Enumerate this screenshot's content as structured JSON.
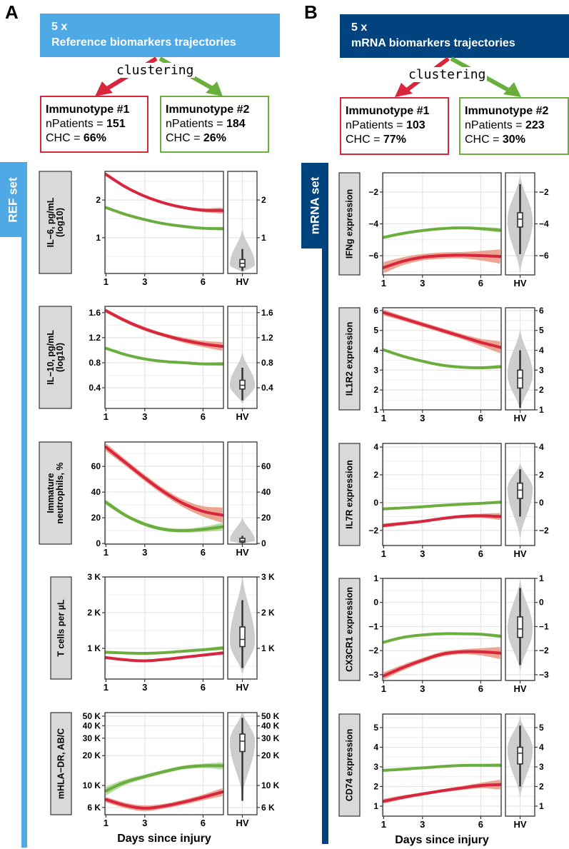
{
  "colors": {
    "immunotype1": "#D7263D",
    "immunotype1_ribbon": "#E9957E",
    "immunotype2": "#6AAE3E",
    "immunotype2_ribbon": "#ADD394",
    "ref_blue": "#4FA9E5",
    "mrna_blue": "#00437F",
    "hv_violin": "#C8C8C8"
  },
  "figure": {
    "panels": [
      {
        "letter": "A",
        "title_line1": "5 x",
        "title_line2": "Reference biomarkers trajectories",
        "method": "clustering",
        "set_label": "REF set",
        "groups": [
          {
            "name": "Immunotype #1",
            "npatients_label": "nPatients = ",
            "npatients": "151",
            "chc_label": "CHC = ",
            "chc": "66%"
          },
          {
            "name": "Immunotype #2",
            "npatients_label": "nPatients = ",
            "npatients": "184",
            "chc_label": "CHC = ",
            "chc": "26%"
          }
        ]
      },
      {
        "letter": "B",
        "title_line1": "5 x",
        "title_line2": "mRNA biomarkers trajectories",
        "method": "clustering",
        "set_label": "mRNA set",
        "groups": [
          {
            "name": "Immunotype #1",
            "npatients_label": "nPatients = ",
            "npatients": "103",
            "chc_label": "CHC = ",
            "chc": "77%"
          },
          {
            "name": "Immunotype #2",
            "npatients_label": "nPatients = ",
            "npatients": "223",
            "chc_label": "CHC = ",
            "chc": "30%"
          }
        ]
      }
    ]
  },
  "chart_data": [
    {
      "type": "line",
      "set": "REF set",
      "xlabel": "Days since injury",
      "x": [
        1,
        2,
        3,
        4,
        5,
        6,
        7
      ],
      "xlim": [
        0.95,
        7.05
      ],
      "xticks": [
        1,
        3,
        6
      ],
      "hv_label": "HV",
      "series_names": [
        "Immunotype #1",
        "Immunotype #2"
      ],
      "panels": [
        {
          "ylabel": [
            "IL−6, pg/mL",
            "(log10)"
          ],
          "yscale": "linear",
          "ylim": [
            0.05,
            2.76
          ],
          "yticks": [
            1,
            2
          ],
          "ytick_labels": [
            "1",
            "2"
          ],
          "series": [
            {
              "name": "Immunotype #1",
              "values": [
                2.68,
                2.35,
                2.1,
                1.92,
                1.8,
                1.73,
                1.72
              ],
              "ci": [
                0.04,
                0.03,
                0.03,
                0.03,
                0.04,
                0.05,
                0.08
              ]
            },
            {
              "name": "Immunotype #2",
              "values": [
                1.8,
                1.62,
                1.48,
                1.37,
                1.3,
                1.25,
                1.24
              ],
              "ci": [
                0.03,
                0.02,
                0.02,
                0.02,
                0.02,
                0.03,
                0.05
              ]
            }
          ],
          "hv": {
            "vmin": 0.08,
            "vmax": 1.2,
            "mode": 0.28,
            "whisker_low": 0.12,
            "q1": 0.22,
            "median": 0.32,
            "q3": 0.42,
            "whisker_high": 0.7
          }
        },
        {
          "ylabel": [
            "IL−10, pg/mL",
            "(log10)"
          ],
          "yscale": "linear",
          "ylim": [
            0.07,
            1.7
          ],
          "yticks": [
            0.4,
            0.8,
            1.2,
            1.6
          ],
          "ytick_labels": [
            "0.4",
            "0.8",
            "1.2",
            "1.6"
          ],
          "series": [
            {
              "name": "Immunotype #1",
              "values": [
                1.63,
                1.47,
                1.34,
                1.24,
                1.16,
                1.1,
                1.06
              ],
              "ci": [
                0.03,
                0.03,
                0.03,
                0.03,
                0.04,
                0.05,
                0.07
              ]
            },
            {
              "name": "Immunotype #2",
              "values": [
                1.03,
                0.93,
                0.86,
                0.82,
                0.8,
                0.78,
                0.78
              ],
              "ci": [
                0.02,
                0.02,
                0.02,
                0.02,
                0.02,
                0.02,
                0.03
              ]
            }
          ],
          "hv": {
            "vmin": 0.15,
            "vmax": 0.95,
            "mode": 0.44,
            "whisker_low": 0.2,
            "q1": 0.38,
            "median": 0.44,
            "q3": 0.52,
            "whisker_high": 0.72
          }
        },
        {
          "ylabel": [
            "Immature",
            "neutrophils, %"
          ],
          "yscale": "linear",
          "ylim": [
            -0.5,
            79
          ],
          "yticks": [
            0,
            20,
            40,
            60
          ],
          "ytick_labels": [
            "0",
            "20",
            "40",
            "60"
          ],
          "series": [
            {
              "name": "Immunotype #1",
              "values": [
                75,
                63,
                51,
                40,
                31,
                25,
                22
              ],
              "ci": [
                3,
                2.5,
                2.5,
                2.5,
                3,
                4,
                6
              ]
            },
            {
              "name": "Immunotype #2",
              "values": [
                32,
                22,
                15,
                11,
                10,
                11,
                13
              ],
              "ci": [
                2,
                1.5,
                1.5,
                1.5,
                1.5,
                2,
                3
              ]
            }
          ],
          "hv": {
            "vmin": 0,
            "vmax": 20,
            "mode": 2,
            "whisker_low": 0,
            "q1": 1,
            "median": 2,
            "q3": 4,
            "whisker_high": 6
          }
        },
        {
          "ylabel": [
            "T cells per µL"
          ],
          "yscale": "linear",
          "ylim": [
            140,
            3000
          ],
          "yticks": [
            1000,
            2000,
            3000
          ],
          "ytick_labels": [
            "1 K",
            "2 K",
            "3 K"
          ],
          "series": [
            {
              "name": "Immunotype #1",
              "values": [
                740,
                680,
                650,
                690,
                750,
                810,
                870
              ],
              "ci": [
                35,
                25,
                25,
                25,
                30,
                35,
                50
              ]
            },
            {
              "name": "Immunotype #2",
              "values": [
                890,
                870,
                860,
                880,
                920,
                960,
                1010
              ],
              "ci": [
                30,
                25,
                25,
                25,
                30,
                35,
                60
              ]
            }
          ],
          "hv": {
            "vmin": 300,
            "vmax": 3000,
            "mode": 1200,
            "whisker_low": 450,
            "q1": 1050,
            "median": 1250,
            "q3": 1600,
            "whisker_high": 2350
          }
        },
        {
          "ylabel": [
            "mHLA−DR, AB/C"
          ],
          "yscale": "log10",
          "ylim": [
            5070,
            54300
          ],
          "yticks": [
            6000,
            10000,
            20000,
            30000,
            40000,
            50000
          ],
          "ytick_labels": [
            "6 K",
            "10 K",
            "20 K",
            "30 K",
            "40 K",
            "50 K"
          ],
          "series": [
            {
              "name": "Immunotype #1",
              "values": [
                7200,
                6300,
                5900,
                6200,
                6800,
                7600,
                8600
              ],
              "ci": [
                450,
                400,
                400,
                350,
                400,
                500,
                800
              ]
            },
            {
              "name": "Immunotype #2",
              "values": [
                8800,
                10800,
                12300,
                13800,
                15200,
                15800,
                15800
              ],
              "ci": [
                900,
                700,
                600,
                600,
                700,
                800,
                1300
              ]
            }
          ],
          "hv": {
            "vmin": 8000,
            "vmax": 55000,
            "mode": 28000,
            "whisker_low": 7000,
            "q1": 22000,
            "median": 28000,
            "q3": 33000,
            "whisker_high": 48000
          }
        }
      ]
    },
    {
      "type": "line",
      "set": "mRNA set",
      "xlabel": "Days since injury",
      "x": [
        1,
        2,
        3,
        4,
        5,
        6,
        7
      ],
      "xlim": [
        0.95,
        7.05
      ],
      "xticks": [
        1,
        3,
        6
      ],
      "hv_label": "HV",
      "series_names": [
        "Immunotype #1",
        "Immunotype #2"
      ],
      "panels": [
        {
          "ylabel": [
            "IFNg expression"
          ],
          "yscale": "linear",
          "ylim": [
            -7.21,
            -0.79
          ],
          "yticks": [
            -6,
            -4,
            -2
          ],
          "ytick_labels": [
            "−6",
            "−4",
            "−2"
          ],
          "series": [
            {
              "name": "Immunotype #1",
              "values": [
                -6.75,
                -6.35,
                -6.1,
                -6.0,
                -5.97,
                -6.0,
                -6.05
              ],
              "ci": [
                0.35,
                0.25,
                0.2,
                0.2,
                0.2,
                0.3,
                0.45
              ]
            },
            {
              "name": "Immunotype #2",
              "values": [
                -4.85,
                -4.6,
                -4.42,
                -4.3,
                -4.25,
                -4.3,
                -4.4
              ],
              "ci": [
                0.1,
                0.08,
                0.08,
                0.08,
                0.08,
                0.1,
                0.15
              ]
            }
          ],
          "hv": {
            "vmin": -7,
            "vmax": -1,
            "mode": -3.8,
            "whisker_low": -5.9,
            "q1": -4.2,
            "median": -3.7,
            "q3": -3.3,
            "whisker_high": -1.5
          }
        },
        {
          "ylabel": [
            "IL1R2 expression"
          ],
          "yscale": "linear",
          "ylim": [
            1.0,
            6.14
          ],
          "yticks": [
            1,
            2,
            3,
            4,
            5,
            6
          ],
          "ytick_labels": [
            "1",
            "2",
            "3",
            "4",
            "5",
            "6"
          ],
          "series": [
            {
              "name": "Immunotype #1",
              "values": [
                5.9,
                5.6,
                5.3,
                5.0,
                4.7,
                4.4,
                4.15
              ],
              "ci": [
                0.15,
                0.12,
                0.12,
                0.12,
                0.13,
                0.18,
                0.3
              ]
            },
            {
              "name": "Immunotype #2",
              "values": [
                4.02,
                3.7,
                3.45,
                3.25,
                3.15,
                3.12,
                3.17
              ],
              "ci": [
                0.06,
                0.05,
                0.05,
                0.05,
                0.05,
                0.06,
                0.1
              ]
            }
          ],
          "hv": {
            "vmin": 1.0,
            "vmax": 5.0,
            "mode": 2.8,
            "whisker_low": 1.1,
            "q1": 2.1,
            "median": 2.6,
            "q3": 3.0,
            "whisker_high": 4.0
          }
        },
        {
          "ylabel": [
            "IL7R expression"
          ],
          "yscale": "linear",
          "ylim": [
            -3.09,
            4.26
          ],
          "yticks": [
            -2,
            0,
            2,
            4
          ],
          "ytick_labels": [
            "−2",
            "0",
            "2",
            "4"
          ],
          "series": [
            {
              "name": "Immunotype #1",
              "values": [
                -1.65,
                -1.5,
                -1.35,
                -1.15,
                -1.0,
                -0.95,
                -1.0
              ],
              "ci": [
                0.15,
                0.12,
                0.1,
                0.1,
                0.12,
                0.15,
                0.25
              ]
            },
            {
              "name": "Immunotype #2",
              "values": [
                -0.45,
                -0.38,
                -0.3,
                -0.2,
                -0.12,
                -0.05,
                0.03
              ],
              "ci": [
                0.06,
                0.05,
                0.05,
                0.05,
                0.05,
                0.07,
                0.12
              ]
            }
          ],
          "hv": {
            "vmin": -2.5,
            "vmax": 2.8,
            "mode": 1.0,
            "whisker_low": -1.0,
            "q1": 0.3,
            "median": 0.9,
            "q3": 1.4,
            "whisker_high": 2.4
          }
        },
        {
          "ylabel": [
            "CX3CR1 expression"
          ],
          "yscale": "linear",
          "ylim": [
            -3.24,
            1.0
          ],
          "yticks": [
            -3,
            -2,
            -1,
            0,
            1
          ],
          "ytick_labels": [
            "−3",
            "−2",
            "−1",
            "0",
            "1"
          ],
          "series": [
            {
              "name": "Immunotype #1",
              "values": [
                -3.05,
                -2.7,
                -2.4,
                -2.15,
                -2.05,
                -2.05,
                -2.1
              ],
              "ci": [
                0.15,
                0.12,
                0.1,
                0.1,
                0.1,
                0.15,
                0.25
              ]
            },
            {
              "name": "Immunotype #2",
              "values": [
                -1.65,
                -1.45,
                -1.35,
                -1.3,
                -1.3,
                -1.32,
                -1.4
              ],
              "ci": [
                0.05,
                0.04,
                0.04,
                0.04,
                0.04,
                0.05,
                0.08
              ]
            }
          ],
          "hv": {
            "vmin": -2.8,
            "vmax": 0.9,
            "mode": -1.1,
            "whisker_low": -2.6,
            "q1": -1.45,
            "median": -1.1,
            "q3": -0.6,
            "whisker_high": 0.6
          }
        },
        {
          "ylabel": [
            "CD74 expression"
          ],
          "yscale": "linear",
          "ylim": [
            0.49,
            5.69
          ],
          "yticks": [
            1,
            2,
            3,
            4,
            5
          ],
          "ytick_labels": [
            "1",
            "2",
            "3",
            "4",
            "5"
          ],
          "series": [
            {
              "name": "Immunotype #1",
              "values": [
                1.25,
                1.45,
                1.62,
                1.78,
                1.92,
                2.05,
                2.1
              ],
              "ci": [
                0.12,
                0.1,
                0.08,
                0.08,
                0.1,
                0.14,
                0.25
              ]
            },
            {
              "name": "Immunotype #2",
              "values": [
                2.82,
                2.88,
                2.95,
                3.02,
                3.07,
                3.08,
                3.08
              ],
              "ci": [
                0.05,
                0.04,
                0.04,
                0.04,
                0.05,
                0.06,
                0.1
              ]
            }
          ],
          "hv": {
            "vmin": 1.5,
            "vmax": 5.5,
            "mode": 3.9,
            "whisker_low": 2.0,
            "q1": 3.15,
            "median": 3.7,
            "q3": 4.0,
            "whisker_high": 5.1
          }
        }
      ]
    }
  ]
}
